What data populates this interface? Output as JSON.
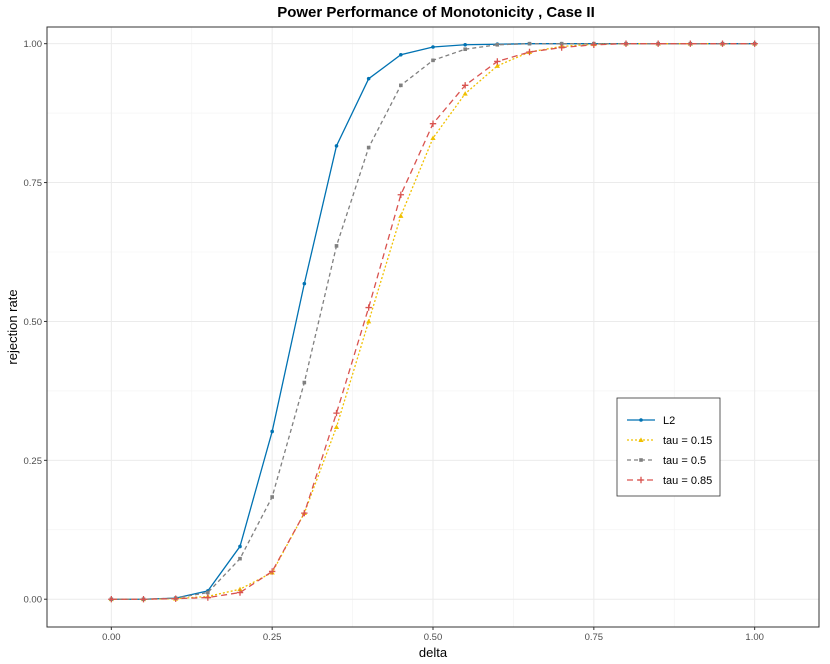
{
  "chart_data": {
    "type": "line",
    "title": "Power Performance of Monotonicity , Case II",
    "xlabel": "delta",
    "ylabel": "rejection rate",
    "xlim": [
      -0.1,
      1.1
    ],
    "ylim": [
      -0.05,
      1.03
    ],
    "xticks": [
      0.0,
      0.25,
      0.5,
      0.75,
      1.0
    ],
    "xtick_labels": [
      "0.00",
      "0.25",
      "0.50",
      "0.75",
      "1.00"
    ],
    "yticks": [
      0.0,
      0.25,
      0.5,
      0.75,
      1.0
    ],
    "ytick_labels": [
      "0.00",
      "0.25",
      "0.50",
      "0.75",
      "1.00"
    ],
    "grid": true,
    "legend_position": "right",
    "x": [
      0.0,
      0.05,
      0.1,
      0.15,
      0.2,
      0.25,
      0.3,
      0.35,
      0.4,
      0.45,
      0.5,
      0.55,
      0.6,
      0.65,
      0.7,
      0.75,
      0.8,
      0.85,
      0.9,
      0.95,
      1.0
    ],
    "series": [
      {
        "name": "L2",
        "color": "#0072B2",
        "linestyle": "solid",
        "marker": "circle",
        "values": [
          0.0,
          0.0,
          0.002,
          0.015,
          0.095,
          0.302,
          0.568,
          0.816,
          0.937,
          0.98,
          0.994,
          0.998,
          0.999,
          1.0,
          1.0,
          1.0,
          1.0,
          1.0,
          1.0,
          1.0,
          1.0
        ]
      },
      {
        "name": "tau = 0.15",
        "color": "#F0C000",
        "linestyle": "dotted",
        "marker": "triangle",
        "values": [
          0.0,
          0.0,
          0.001,
          0.005,
          0.018,
          0.048,
          0.155,
          0.31,
          0.5,
          0.69,
          0.83,
          0.91,
          0.96,
          0.985,
          0.995,
          0.999,
          1.0,
          1.0,
          1.0,
          1.0,
          1.0
        ]
      },
      {
        "name": "tau = 0.5",
        "color": "#808080",
        "linestyle": "dashed",
        "marker": "square",
        "values": [
          0.0,
          0.0,
          0.002,
          0.012,
          0.073,
          0.184,
          0.39,
          0.636,
          0.813,
          0.925,
          0.97,
          0.99,
          0.998,
          1.0,
          1.0,
          1.0,
          1.0,
          1.0,
          1.0,
          1.0,
          1.0
        ]
      },
      {
        "name": "tau = 0.85",
        "color": "#D9534F",
        "linestyle": "longdash",
        "marker": "plus",
        "values": [
          0.0,
          0.0,
          0.001,
          0.003,
          0.012,
          0.05,
          0.155,
          0.335,
          0.525,
          0.728,
          0.856,
          0.925,
          0.968,
          0.985,
          0.993,
          0.998,
          1.0,
          1.0,
          1.0,
          1.0,
          1.0
        ]
      }
    ]
  }
}
